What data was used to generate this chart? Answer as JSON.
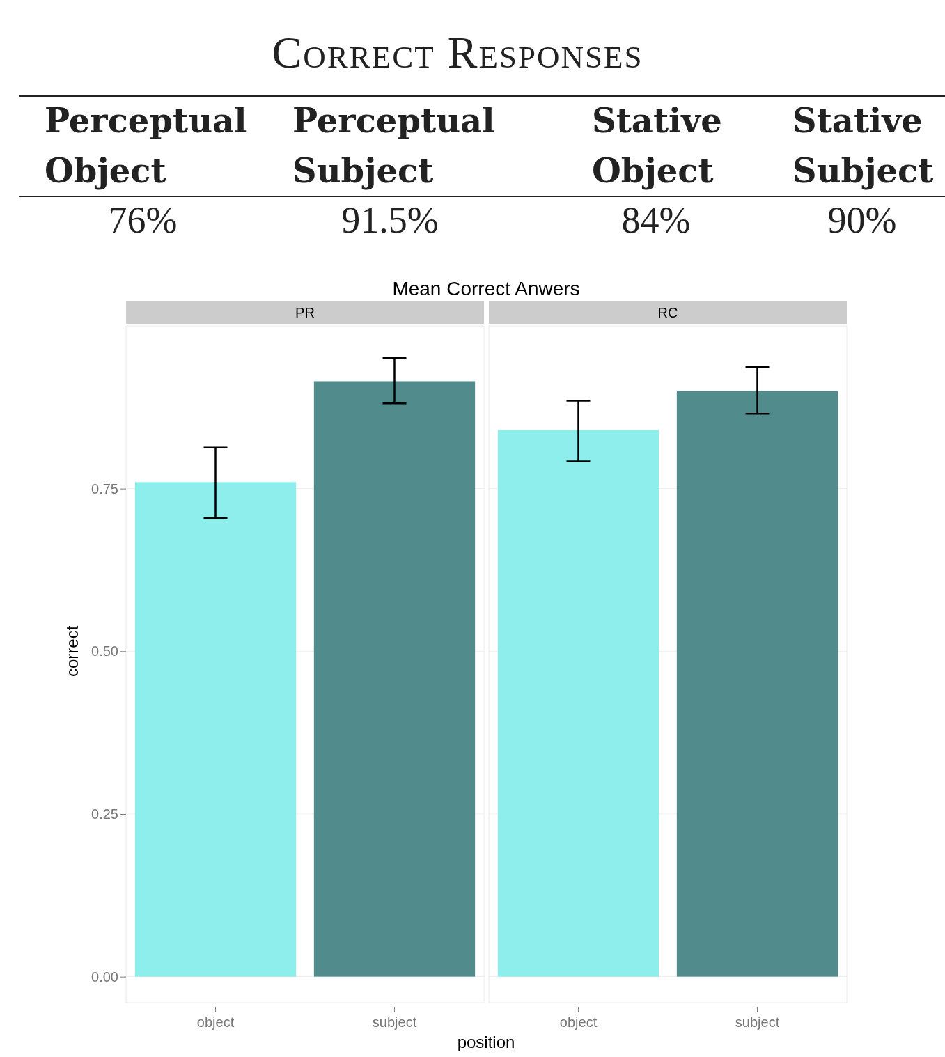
{
  "chart_data": [
    {
      "type": "other",
      "title": "Correct Responses",
      "categories": [
        "Perceptual Object",
        "Perceptual Subject",
        "Stative Object",
        "Stative Subject"
      ],
      "values": [
        76,
        91.5,
        84,
        90
      ],
      "value_labels": [
        "76%",
        "91.5%",
        "84%",
        "90%"
      ]
    },
    {
      "type": "bar",
      "title": "Mean Correct Anwers",
      "subtitle": "PR",
      "xlabel": "position",
      "ylabel": "correct",
      "categories": [
        "object",
        "subject"
      ],
      "values": [
        0.76,
        0.915
      ],
      "colors": [
        "#8eeeec",
        "#528b8b"
      ],
      "errors": [
        [
          0.705,
          0.813
        ],
        [
          0.881,
          0.951
        ]
      ],
      "ylim": [
        -0.04,
        1.0
      ],
      "yticks": [
        {
          "value": 0,
          "label": "0.00"
        },
        {
          "value": 0.25,
          "label": "0.25"
        },
        {
          "value": 0.5,
          "label": "0.50"
        },
        {
          "value": 0.75,
          "label": "0.75"
        }
      ],
      "grid": "y"
    },
    {
      "type": "bar",
      "subtitle": "RC",
      "categories": [
        "object",
        "subject"
      ],
      "values": [
        0.84,
        0.9
      ],
      "colors": [
        "#8eeeec",
        "#528b8b"
      ],
      "errors": [
        [
          0.792,
          0.885
        ],
        [
          0.865,
          0.937
        ]
      ],
      "ylim": [
        -0.04,
        1.0
      ],
      "yticks": [
        0,
        0.25,
        0.5,
        0.75
      ],
      "grid": "y",
      "tick_labels": "x"
    }
  ]
}
